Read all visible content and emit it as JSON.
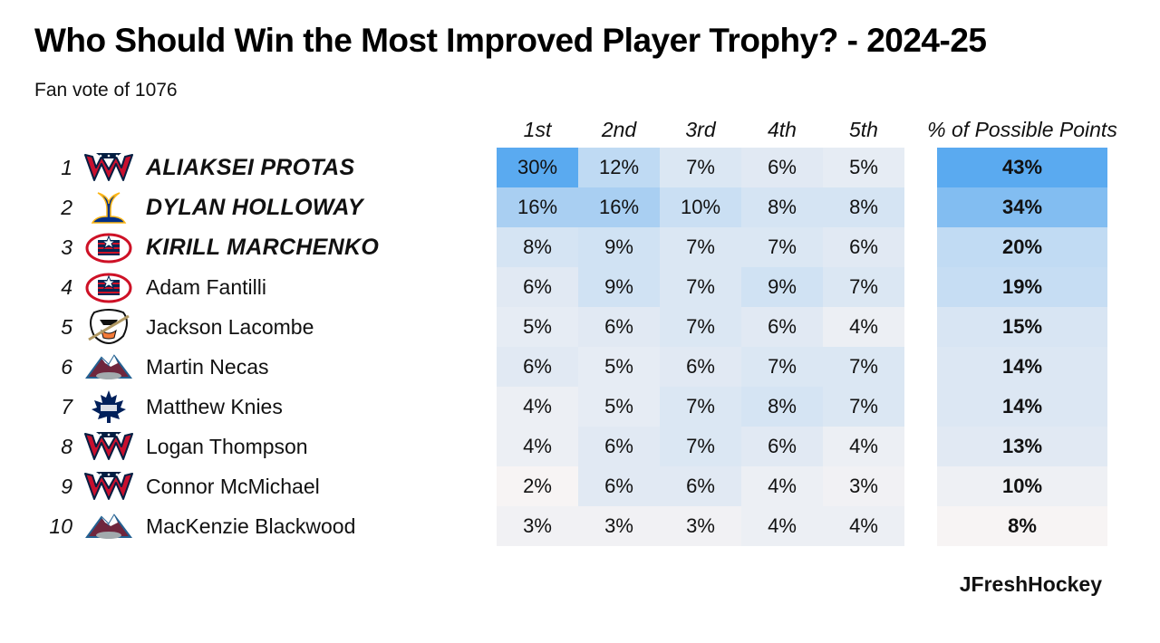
{
  "title": "Who Should Win the Most Improved Player Trophy? - 2024-25",
  "subtitle": "Fan vote of 1076",
  "credit": "JFreshHockey",
  "headers": [
    "1st",
    "2nd",
    "3rd",
    "4th",
    "5th"
  ],
  "pct_header": "% of Possible Points",
  "chart_data": {
    "type": "table",
    "columns": [
      "1st",
      "2nd",
      "3rd",
      "4th",
      "5th",
      "% of Possible Points"
    ],
    "rows": [
      {
        "rank": "1",
        "team_logo": "capitals-logo",
        "name": "ALIAKSEI PROTAS",
        "highlight": true,
        "votes": [
          "30%",
          "12%",
          "7%",
          "6%",
          "5%"
        ],
        "pct": "43%"
      },
      {
        "rank": "2",
        "team_logo": "blues-logo",
        "name": "DYLAN HOLLOWAY",
        "highlight": true,
        "votes": [
          "16%",
          "16%",
          "10%",
          "8%",
          "8%"
        ],
        "pct": "34%"
      },
      {
        "rank": "3",
        "team_logo": "blue-jackets-logo",
        "name": "KIRILL MARCHENKO",
        "highlight": true,
        "votes": [
          "8%",
          "9%",
          "7%",
          "7%",
          "6%"
        ],
        "pct": "20%"
      },
      {
        "rank": "4",
        "team_logo": "blue-jackets-logo",
        "name": "Adam Fantilli",
        "highlight": false,
        "votes": [
          "6%",
          "9%",
          "7%",
          "9%",
          "7%"
        ],
        "pct": "19%"
      },
      {
        "rank": "5",
        "team_logo": "ducks-logo",
        "name": "Jackson Lacombe",
        "highlight": false,
        "votes": [
          "5%",
          "6%",
          "7%",
          "6%",
          "4%"
        ],
        "pct": "15%"
      },
      {
        "rank": "6",
        "team_logo": "avalanche-logo",
        "name": "Martin Necas",
        "highlight": false,
        "votes": [
          "6%",
          "5%",
          "6%",
          "7%",
          "7%"
        ],
        "pct": "14%"
      },
      {
        "rank": "7",
        "team_logo": "maple-leafs-logo",
        "name": "Matthew Knies",
        "highlight": false,
        "votes": [
          "4%",
          "5%",
          "7%",
          "8%",
          "7%"
        ],
        "pct": "14%"
      },
      {
        "rank": "8",
        "team_logo": "capitals-logo",
        "name": "Logan Thompson",
        "highlight": false,
        "votes": [
          "4%",
          "6%",
          "7%",
          "6%",
          "4%"
        ],
        "pct": "13%"
      },
      {
        "rank": "9",
        "team_logo": "capitals-logo",
        "name": "Connor McMichael",
        "highlight": false,
        "votes": [
          "2%",
          "6%",
          "6%",
          "4%",
          "3%"
        ],
        "pct": "10%"
      },
      {
        "rank": "10",
        "team_logo": "avalanche-logo",
        "name": "MacKenzie Blackwood",
        "highlight": false,
        "votes": [
          "3%",
          "3%",
          "3%",
          "4%",
          "4%"
        ],
        "pct": "8%"
      }
    ]
  },
  "colors": {
    "heat_low": "#f7f4f4",
    "heat_high": "#5aaaf0"
  }
}
